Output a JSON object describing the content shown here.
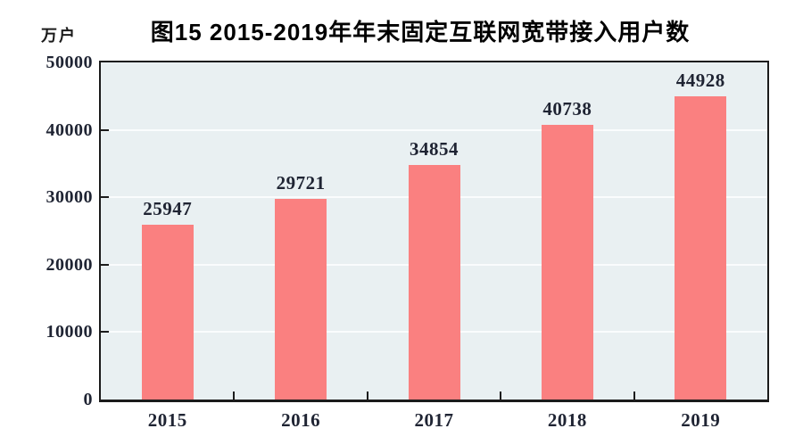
{
  "unit_label": "万户",
  "title": "图15 2015-2019年年末固定互联网宽带接入用户数",
  "chart_data": {
    "type": "bar",
    "categories": [
      "2015",
      "2016",
      "2017",
      "2018",
      "2019"
    ],
    "values": [
      25947,
      29721,
      34854,
      40738,
      44928
    ],
    "title": "图15 2015-2019年年末固定互联网宽带接入用户数",
    "xlabel": "",
    "ylabel": "万户",
    "ylim": [
      0,
      50000
    ],
    "yticks": [
      0,
      10000,
      20000,
      30000,
      40000,
      50000
    ],
    "grid": true,
    "legend_position": "none",
    "colors": {
      "bar": "#FA8080",
      "plot_bg": "#E9F0F2",
      "gridline": "#FAFCFD",
      "axis": "#1B1B1B",
      "tick_label": "#1F2433",
      "title": "#000000"
    }
  }
}
